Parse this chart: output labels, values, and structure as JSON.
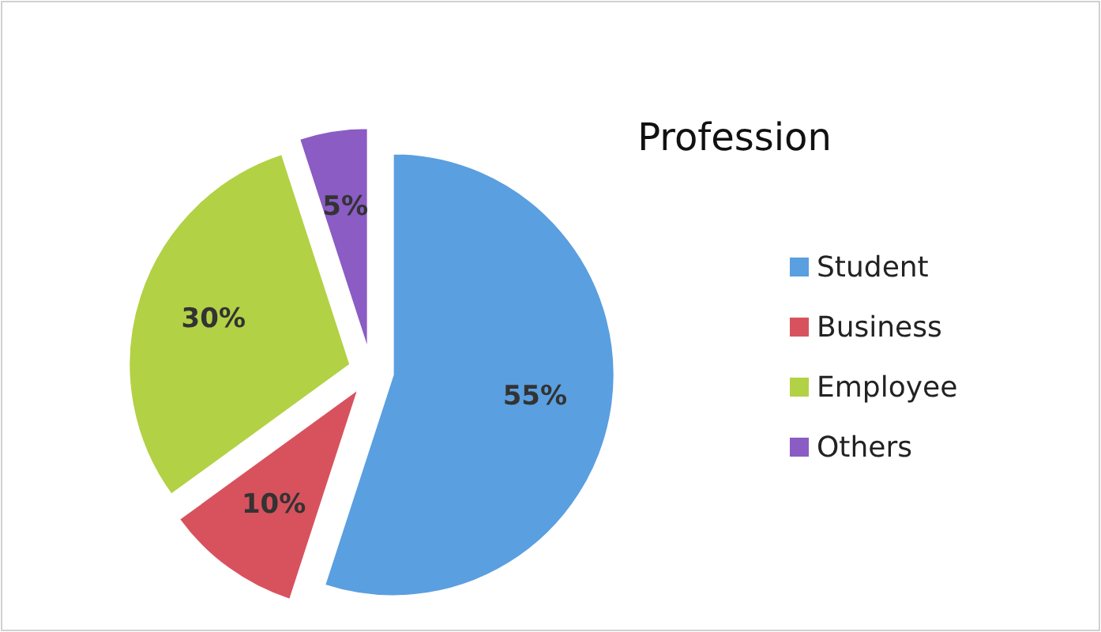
{
  "chart_data": {
    "type": "pie",
    "title": "Profession",
    "categories": [
      "Student",
      "Business",
      "Employee",
      "Others"
    ],
    "values": [
      55,
      10,
      30,
      5
    ],
    "value_labels": [
      "55%",
      "10%",
      "30%",
      "5%"
    ],
    "colors": [
      "#5a9fe0",
      "#d8525e",
      "#b3d145",
      "#8a5cc4"
    ],
    "legend": "right"
  }
}
